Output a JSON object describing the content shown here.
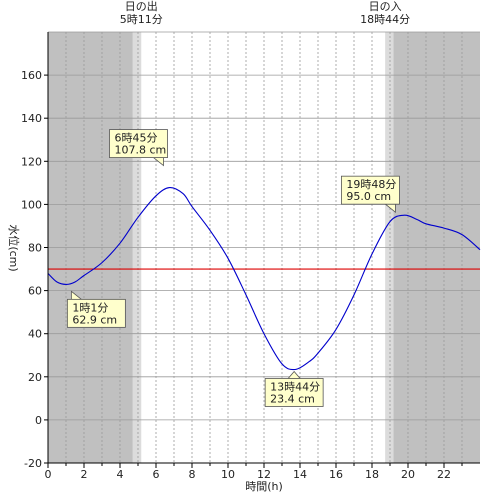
{
  "chart_data": {
    "type": "line",
    "xlabel": "時間(h)",
    "ylabel": "水位(cm)",
    "xlim": [
      0,
      24
    ],
    "ylim": [
      -20,
      180
    ],
    "x_ticks": [
      0,
      2,
      4,
      6,
      8,
      10,
      12,
      14,
      16,
      18,
      20,
      22
    ],
    "y_ticks": [
      -20,
      0,
      20,
      40,
      60,
      80,
      100,
      120,
      140,
      160
    ],
    "grid": true,
    "colors": {
      "line": "#0000cc",
      "reference": "#dd0000",
      "night": "#c0c0c0",
      "twilight": "#dcdcdc",
      "day": "#ffffff"
    },
    "sunrise": {
      "label": "日の出",
      "time": "5時11分",
      "hour": 5.18
    },
    "sunset": {
      "label": "日の入",
      "time": "18時44分",
      "hour": 18.73
    },
    "twilight": {
      "morning_start": 4.7,
      "evening_end": 19.2
    },
    "reference_level": 70,
    "series": [
      {
        "x": [
          0,
          0.5,
          1.02,
          1.5,
          2,
          3,
          4,
          5,
          6,
          6.75,
          7.5,
          8,
          9,
          10,
          11,
          12,
          13,
          13.73,
          14.5,
          15,
          16,
          17,
          18,
          19,
          19.8,
          20.5,
          21,
          22,
          23,
          24
        ],
        "y": [
          68,
          64,
          62.9,
          64,
          67,
          73,
          82,
          94,
          104,
          107.8,
          105,
          99,
          88,
          75,
          58,
          40,
          26,
          23.4,
          27,
          31,
          42,
          58,
          77,
          92,
          95.0,
          93,
          91,
          89,
          86,
          79
        ]
      }
    ],
    "annotations": [
      {
        "time": "1時1分",
        "value": "62.9 cm",
        "x": 1.02,
        "y": 62.9
      },
      {
        "time": "6時45分",
        "value": "107.8 cm",
        "x": 6.75,
        "y": 107.8
      },
      {
        "time": "13時44分",
        "value": "23.4 cm",
        "x": 13.73,
        "y": 23.4
      },
      {
        "time": "19時48分",
        "value": "95.0 cm",
        "x": 19.8,
        "y": 95.0
      }
    ]
  }
}
